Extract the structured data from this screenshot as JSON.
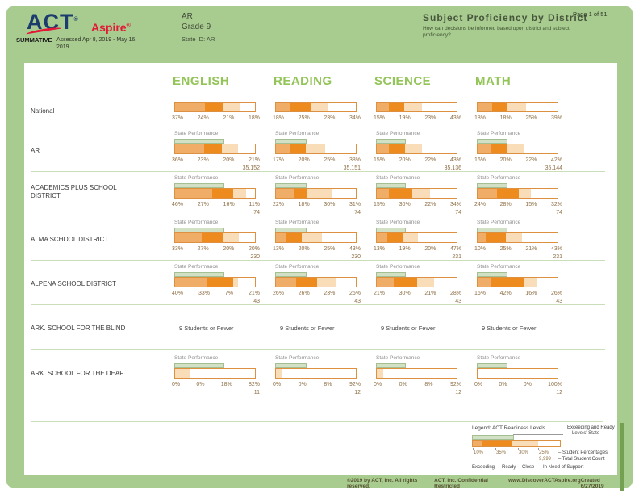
{
  "header": {
    "logo_act": "ACT",
    "logo_aspire": "Aspire",
    "reg": "®",
    "summative_label": "SUMMATIVE",
    "assessed": "Assessed Apr 8, 2019 - May 16, 2019",
    "state": "AR",
    "grade": "Grade 9",
    "state_id": "State ID: AR",
    "title": "Subject Proficiency by District",
    "subtitle": "How can decisions be informed based upon district and subject proficiency?",
    "page_label": "Page 1 of 51"
  },
  "columns": [
    "ENGLISH",
    "READING",
    "SCIENCE",
    "MATH"
  ],
  "state_performance_label": "State Performance",
  "state_ready_pct": [
    59,
    37,
    35,
    36
  ],
  "suppressed_text": "9 Students or Fewer",
  "rows": [
    {
      "label": "National",
      "type": "plain",
      "cells": [
        {
          "pcts": [
            37,
            24,
            21,
            18
          ]
        },
        {
          "pcts": [
            18,
            25,
            23,
            34
          ]
        },
        {
          "pcts": [
            15,
            19,
            23,
            43
          ]
        },
        {
          "pcts": [
            18,
            18,
            25,
            39
          ]
        }
      ]
    },
    {
      "label": "AR",
      "type": "state",
      "cells": [
        {
          "pcts": [
            36,
            23,
            20,
            21
          ],
          "count": "35,152"
        },
        {
          "pcts": [
            17,
            20,
            25,
            38
          ],
          "count": "35,151"
        },
        {
          "pcts": [
            15,
            20,
            22,
            43
          ],
          "count": "35,136"
        },
        {
          "pcts": [
            16,
            20,
            22,
            42
          ],
          "count": "35,144"
        }
      ]
    },
    {
      "label": "ACADEMICS PLUS SCHOOL DISTRICT",
      "type": "district",
      "cells": [
        {
          "pcts": [
            46,
            27,
            16,
            11
          ],
          "count": "74"
        },
        {
          "pcts": [
            22,
            18,
            30,
            31
          ],
          "count": "74"
        },
        {
          "pcts": [
            15,
            30,
            22,
            34
          ],
          "count": "74"
        },
        {
          "pcts": [
            24,
            28,
            15,
            32
          ],
          "count": "74"
        }
      ]
    },
    {
      "label": "ALMA SCHOOL DISTRICT",
      "type": "district",
      "cells": [
        {
          "pcts": [
            33,
            27,
            20,
            20
          ],
          "count": "230"
        },
        {
          "pcts": [
            13,
            20,
            25,
            43
          ],
          "count": "230"
        },
        {
          "pcts": [
            13,
            19,
            20,
            47
          ],
          "count": "231"
        },
        {
          "pcts": [
            10,
            25,
            21,
            43
          ],
          "count": "231"
        }
      ]
    },
    {
      "label": "ALPENA SCHOOL DISTRICT",
      "type": "district",
      "cells": [
        {
          "pcts": [
            40,
            33,
            7,
            21
          ],
          "count": "43"
        },
        {
          "pcts": [
            26,
            26,
            23,
            26
          ],
          "count": "43"
        },
        {
          "pcts": [
            21,
            30,
            21,
            28
          ],
          "count": "43"
        },
        {
          "pcts": [
            16,
            42,
            16,
            26
          ],
          "count": "43"
        }
      ]
    },
    {
      "label": "ARK. SCHOOL FOR THE BLIND",
      "type": "suppressed"
    },
    {
      "label": "ARK. SCHOOL FOR THE DEAF",
      "type": "district",
      "cells": [
        {
          "pcts": [
            0,
            0,
            18,
            82
          ],
          "count": "11"
        },
        {
          "pcts": [
            0,
            0,
            8,
            92
          ],
          "count": "12"
        },
        {
          "pcts": [
            0,
            0,
            8,
            92
          ],
          "count": "12"
        },
        {
          "pcts": [
            0,
            0,
            0,
            100
          ],
          "count": "12"
        }
      ]
    }
  ],
  "legend": {
    "title": "Legend: ACT Readiness Levels",
    "sample_pcts": [
      10,
      35,
      30,
      25
    ],
    "sample_state_pct": 45,
    "state_note_line1": "Exceeding and Ready",
    "state_note_line2": "Levels' State",
    "tick_labels": [
      "10%",
      "35%",
      "30%",
      "25%"
    ],
    "student_pct_note": "– Student Percentages",
    "count_example": "9,999",
    "count_note": "– Total Student Count",
    "levels": [
      "Exceeding",
      "Ready",
      "Close",
      "In Need of Support"
    ]
  },
  "colors": {
    "page_green": "#a8cb90",
    "exceeding": "#f0ad68",
    "ready": "#ee8b1e",
    "close": "#f9dcb8",
    "support": "#ffffff",
    "bar_border": "#dd9040",
    "state_overlay": "#d2e0c5",
    "state_overlay_border": "#a4bf92",
    "header_green": "#93c457",
    "pct_text": "#8d6e44",
    "separator": "#cadeb7"
  },
  "footer": {
    "items": [
      "©2019 by ACT, Inc. All rights reserved.",
      "ACT, Inc. Confidential Restricted",
      "www.DiscoverACTAspire.org",
      "Created 6/27/2019"
    ]
  }
}
